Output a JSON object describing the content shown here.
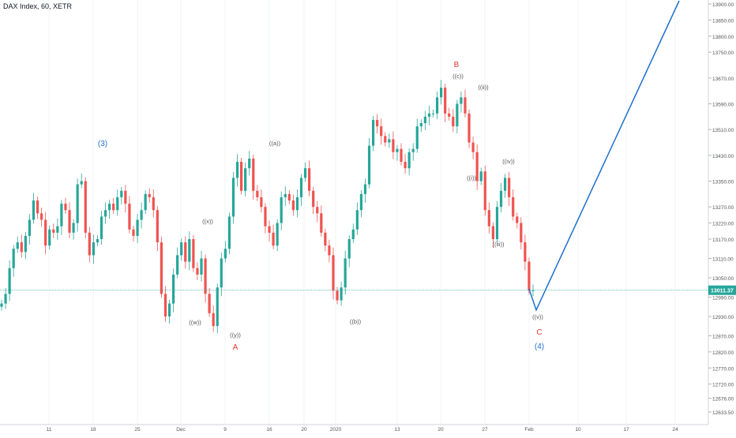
{
  "header": {
    "title": "DAX Index, 60, XETR"
  },
  "price_tag": {
    "value": "13011.37",
    "price": 13011.37,
    "color": "#26a69a"
  },
  "colors": {
    "up": "#26a69a",
    "down": "#ef5350",
    "projection": "#1e6fce",
    "wave_red": "#e53935",
    "wave_blue": "#1e6fce",
    "wave_gray": "#555555",
    "grid": "#f0f3fa",
    "axis_text": "#555555"
  },
  "chart_data": {
    "type": "line",
    "title": "DAX Index, 60, XETR",
    "xlabel": "",
    "ylabel": "",
    "ylim": [
      12600,
      13930
    ],
    "y_ticks": [
      "12633.50",
      "12676.00",
      "12720.00",
      "12770.00",
      "12820.00",
      "12870.00",
      "12930.00",
      "12990.00",
      "13050.00",
      "13110.00",
      "13170.00",
      "13220.00",
      "13270.00",
      "13350.00",
      "13430.00",
      "13510.00",
      "13590.00",
      "13670.00",
      "13750.00",
      "13800.00",
      "13850.00",
      "13900.00"
    ],
    "x_ticks": [
      "11",
      "18",
      "25",
      "Dec",
      "9",
      "16",
      "20",
      "2020",
      "13",
      "20",
      "27",
      "Feb",
      "10",
      "17",
      "24"
    ],
    "series": [
      {
        "values": [
          12970,
          13000,
          13080,
          13140,
          13160,
          13130,
          13180,
          13230,
          13290,
          13250,
          13230,
          13150,
          13200,
          13190,
          13210,
          13280,
          13260,
          13190,
          13220,
          13340,
          13350,
          13190,
          13120,
          13160,
          13170,
          13240,
          13260,
          13280,
          13260,
          13300,
          13320,
          13280,
          13200,
          13180,
          13230,
          13260,
          13310,
          13300,
          13260,
          13160,
          13000,
          12930,
          12970,
          13060,
          13120,
          13160,
          13100,
          13170,
          13080,
          13060,
          13110,
          13000,
          12940,
          12900,
          13020,
          13110,
          13140,
          13240,
          13360,
          13410,
          13320,
          13390,
          13420,
          13320,
          13300,
          13270,
          13210,
          13190,
          13150,
          13220,
          13300,
          13310,
          13290,
          13260,
          13300,
          13360,
          13390,
          13320,
          13270,
          13250,
          13190,
          13150,
          13120,
          13010,
          12980,
          13020,
          13110,
          13170,
          13200,
          13260,
          13310,
          13340,
          13460,
          13540,
          13520,
          13490,
          13470,
          13480,
          13440,
          13450,
          13410,
          13390,
          13440,
          13450,
          13520,
          13530,
          13550,
          13560,
          13560,
          13610,
          13640,
          13560,
          13550,
          13520,
          13590,
          13610,
          13560,
          13470,
          13440,
          13350,
          13380,
          13260,
          13210,
          13170,
          13270,
          13320,
          13360,
          13300,
          13240,
          13220,
          13160,
          13100,
          13010,
          13011.37
        ]
      },
      {
        "name": "",
        "values": [
          12950,
          13900
        ]
      }
    ],
    "wave_labels": [
      {
        "text": "(3)",
        "color": "blue"
      },
      {
        "text": "((w))",
        "color": "gray"
      },
      {
        "text": "((x))",
        "color": "gray"
      },
      {
        "text": "((y))",
        "color": "gray"
      },
      {
        "text": "A",
        "color": "red"
      },
      {
        "text": "((a))",
        "color": "gray"
      },
      {
        "text": "((b))",
        "color": "gray"
      },
      {
        "text": "B",
        "color": "red"
      },
      {
        "text": "((c))",
        "color": "gray"
      },
      {
        "text": "((ii))",
        "color": "gray"
      },
      {
        "text": "((i))",
        "color": "gray"
      },
      {
        "text": "((iv))",
        "color": "gray"
      },
      {
        "text": "((iii))",
        "color": "gray"
      },
      {
        "text": "((v))",
        "color": "gray"
      },
      {
        "text": "C",
        "color": "red"
      },
      {
        "text": "(4)",
        "color": "blue"
      }
    ],
    "grid": true
  }
}
